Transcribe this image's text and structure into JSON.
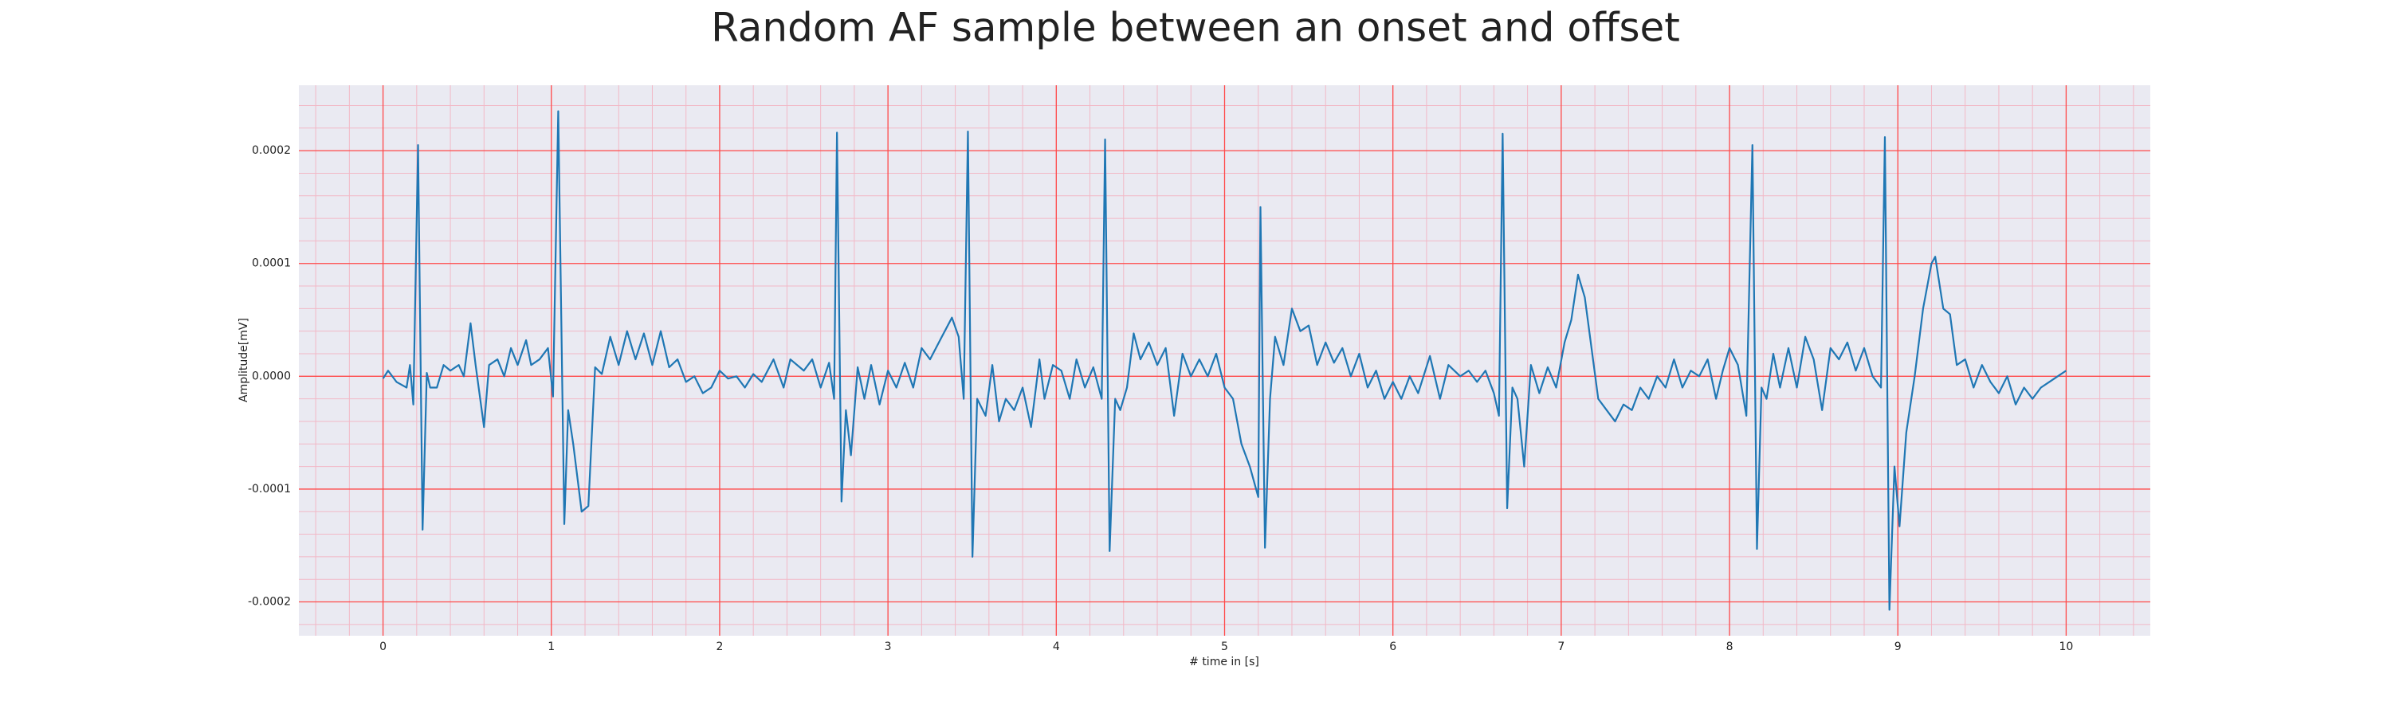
{
  "chart_data": {
    "type": "line",
    "title": "Random AF sample between an onset and offset",
    "xlabel": "# time in [s]",
    "ylabel": "Amplitude[mV]",
    "color": "#1f77b4",
    "grid": true,
    "minor_grid": true,
    "xlim": [
      -0.5,
      10.5
    ],
    "ylim": [
      -0.00023,
      0.000258
    ],
    "xticks": [
      0,
      1,
      2,
      3,
      4,
      5,
      6,
      7,
      8,
      9,
      10
    ],
    "yticks": [
      {
        "value": -0.0002,
        "label": "-0.0002"
      },
      {
        "value": -0.0001,
        "label": "-0.0001"
      },
      {
        "value": 0,
        "label": "0.0000"
      },
      {
        "value": 0.0001,
        "label": "0.0001"
      },
      {
        "value": 0.0002,
        "label": "0.0002"
      }
    ],
    "x": [
      0,
      0.03,
      0.08,
      0.14,
      0.16,
      0.18,
      0.208,
      0.235,
      0.26,
      0.28,
      0.32,
      0.36,
      0.4,
      0.45,
      0.48,
      0.52,
      0.55,
      0.6,
      0.63,
      0.68,
      0.72,
      0.76,
      0.8,
      0.85,
      0.88,
      0.93,
      0.98,
      1.01,
      1.041,
      1.077,
      1.1,
      1.13,
      1.18,
      1.22,
      1.26,
      1.3,
      1.35,
      1.4,
      1.45,
      1.5,
      1.55,
      1.6,
      1.65,
      1.7,
      1.75,
      1.8,
      1.85,
      1.9,
      1.95,
      2.0,
      2.05,
      2.1,
      2.15,
      2.2,
      2.25,
      2.32,
      2.38,
      2.42,
      2.5,
      2.55,
      2.6,
      2.65,
      2.68,
      2.697,
      2.724,
      2.75,
      2.78,
      2.82,
      2.86,
      2.9,
      2.95,
      3.0,
      3.05,
      3.1,
      3.15,
      3.2,
      3.25,
      3.32,
      3.38,
      3.42,
      3.45,
      3.475,
      3.502,
      3.53,
      3.58,
      3.62,
      3.66,
      3.7,
      3.75,
      3.8,
      3.85,
      3.9,
      3.93,
      3.98,
      4.03,
      4.08,
      4.12,
      4.17,
      4.22,
      4.27,
      4.29,
      4.317,
      4.35,
      4.38,
      4.42,
      4.46,
      4.5,
      4.55,
      4.6,
      4.65,
      4.7,
      4.75,
      4.8,
      4.85,
      4.9,
      4.95,
      5.0,
      5.05,
      5.1,
      5.15,
      5.2,
      5.213,
      5.24,
      5.27,
      5.3,
      5.35,
      5.4,
      5.45,
      5.5,
      5.55,
      5.6,
      5.65,
      5.7,
      5.75,
      5.8,
      5.85,
      5.9,
      5.95,
      6.0,
      6.05,
      6.1,
      6.15,
      6.22,
      6.28,
      6.33,
      6.4,
      6.45,
      6.5,
      6.55,
      6.6,
      6.63,
      6.652,
      6.679,
      6.71,
      6.74,
      6.78,
      6.82,
      6.87,
      6.92,
      6.97,
      7.02,
      7.06,
      7.1,
      7.14,
      7.18,
      7.22,
      7.27,
      7.32,
      7.37,
      7.42,
      7.47,
      7.52,
      7.57,
      7.62,
      7.67,
      7.72,
      7.77,
      7.82,
      7.87,
      7.92,
      7.96,
      8.0,
      8.05,
      8.1,
      8.136,
      8.163,
      8.19,
      8.22,
      8.26,
      8.3,
      8.35,
      8.4,
      8.45,
      8.5,
      8.55,
      8.6,
      8.65,
      8.7,
      8.75,
      8.8,
      8.85,
      8.9,
      8.923,
      8.95,
      8.98,
      9.01,
      9.05,
      9.1,
      9.15,
      9.2,
      9.222,
      9.27,
      9.31,
      9.35,
      9.4,
      9.45,
      9.5,
      9.55,
      9.6,
      9.65,
      9.7,
      9.75,
      9.8,
      9.85,
      9.9,
      9.95,
      10.0
    ],
    "values": [
      -2e-06,
      5e-06,
      -5e-06,
      -1e-05,
      1e-05,
      -2.5e-05,
      0.000205,
      -0.000136,
      3e-06,
      -1e-05,
      -1e-05,
      1e-05,
      5e-06,
      1e-05,
      0,
      4.7e-05,
      1e-05,
      -4.5e-05,
      1e-05,
      1.5e-05,
      0,
      2.5e-05,
      1e-05,
      3.2e-05,
      1e-05,
      1.5e-05,
      2.5e-05,
      -1.8e-05,
      0.000235,
      -0.000131,
      -3e-05,
      -6e-05,
      -0.00012,
      -0.000115,
      8e-06,
      2e-06,
      3.5e-05,
      1e-05,
      4e-05,
      1.5e-05,
      3.8e-05,
      1e-05,
      4e-05,
      8e-06,
      1.5e-05,
      -5e-06,
      0,
      -1.5e-05,
      -1e-05,
      5e-06,
      -2e-06,
      0,
      -1e-05,
      2e-06,
      -5e-06,
      1.5e-05,
      -1e-05,
      1.5e-05,
      5e-06,
      1.5e-05,
      -1e-05,
      1.2e-05,
      -2e-05,
      0.000216,
      -0.000111,
      -3e-05,
      -7e-05,
      8e-06,
      -2e-05,
      1e-05,
      -2.5e-05,
      5e-06,
      -1e-05,
      1.2e-05,
      -1e-05,
      2.5e-05,
      1.5e-05,
      3.5e-05,
      5.2e-05,
      3.5e-05,
      -2e-05,
      0.000217,
      -0.00016,
      -2e-05,
      -3.5e-05,
      1e-05,
      -4e-05,
      -2e-05,
      -3e-05,
      -1e-05,
      -4.5e-05,
      1.5e-05,
      -2e-05,
      1e-05,
      5e-06,
      -2e-05,
      1.5e-05,
      -1e-05,
      8e-06,
      -2e-05,
      0.00021,
      -0.000155,
      -2e-05,
      -3e-05,
      -1e-05,
      3.8e-05,
      1.5e-05,
      3e-05,
      1e-05,
      2.5e-05,
      -3.5e-05,
      2e-05,
      0,
      1.5e-05,
      0,
      2e-05,
      -1e-05,
      -2e-05,
      -6e-05,
      -8e-05,
      -0.000107,
      0.00015,
      -0.000152,
      -2e-05,
      3.5e-05,
      1e-05,
      6e-05,
      4e-05,
      4.5e-05,
      1e-05,
      3e-05,
      1.2e-05,
      2.5e-05,
      0,
      2e-05,
      -1e-05,
      5e-06,
      -2e-05,
      -5e-06,
      -2e-05,
      0,
      -1.5e-05,
      1.8e-05,
      -2e-05,
      1e-05,
      0,
      5e-06,
      -5e-06,
      5e-06,
      -1.5e-05,
      -3.5e-05,
      0.000215,
      -0.000117,
      -1e-05,
      -2e-05,
      -8e-05,
      1e-05,
      -1.5e-05,
      8e-06,
      -1e-05,
      3e-05,
      5e-05,
      9e-05,
      7e-05,
      2.5e-05,
      -2e-05,
      -3e-05,
      -4e-05,
      -2.5e-05,
      -3e-05,
      -1e-05,
      -2e-05,
      0,
      -1e-05,
      1.5e-05,
      -1e-05,
      5e-06,
      0,
      1.5e-05,
      -2e-05,
      5e-06,
      2.5e-05,
      1e-05,
      -3.5e-05,
      0.000205,
      -0.000153,
      -1e-05,
      -2e-05,
      2e-05,
      -1e-05,
      2.5e-05,
      -1e-05,
      3.5e-05,
      1.5e-05,
      -3e-05,
      2.5e-05,
      1.5e-05,
      3e-05,
      5e-06,
      2.5e-05,
      0,
      -1e-05,
      0.000212,
      -0.000207,
      -8e-05,
      -0.000133,
      -5e-05,
      0,
      6e-05,
      0.0001,
      0.000106,
      6e-05,
      5.5e-05,
      1e-05,
      1.5e-05,
      -1e-05,
      1e-05,
      -5e-06,
      -1.5e-05,
      0,
      -2.5e-05,
      -1e-05,
      -2e-05,
      -1e-05,
      -5e-06,
      0,
      5e-06
    ]
  }
}
